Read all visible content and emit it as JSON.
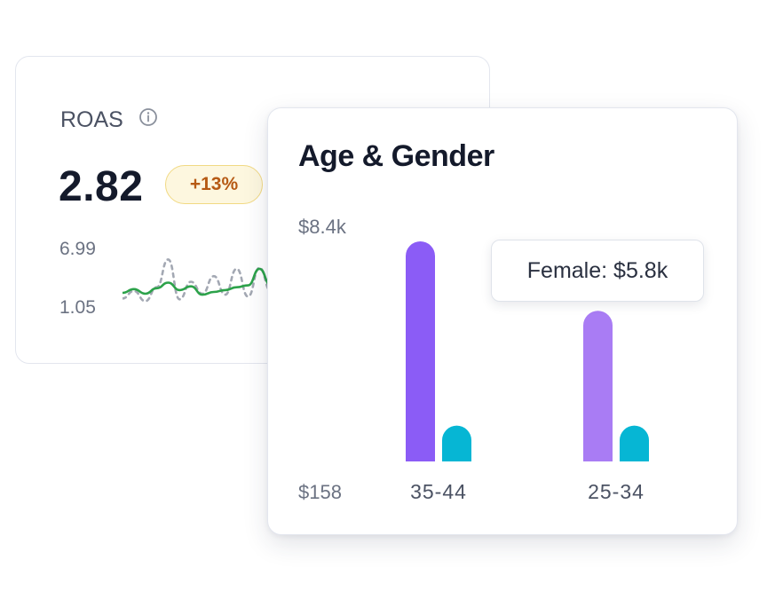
{
  "roas_card": {
    "title": "ROAS",
    "value": "2.82",
    "change_badge": "+13%",
    "spark_max": "6.99",
    "spark_min": "1.05",
    "colors": {
      "current": "#2ca24a",
      "previous": "#a3a8b3",
      "badge_text": "#b65a14",
      "badge_bg": "#fdf7df"
    }
  },
  "age_card": {
    "title": "Age & Gender",
    "tooltip": "Female: $5.8k"
  },
  "chart_data": [
    {
      "type": "line",
      "title": "",
      "ylim": [
        1.05,
        6.99
      ],
      "y_tick_labels": [
        "6.99",
        "1.05"
      ],
      "grid": false,
      "series": [
        {
          "style": "solid",
          "color": "#2ca24a",
          "values": [
            2.2,
            2.6,
            2.1,
            2.7,
            3.3,
            2.5,
            2.9,
            2.0,
            2.3,
            2.5,
            2.8,
            3.0,
            4.8,
            3.0,
            3.8
          ]
        },
        {
          "style": "dashed",
          "color": "#a3a8b3",
          "values": [
            1.6,
            2.4,
            1.3,
            2.8,
            5.8,
            1.5,
            3.4,
            2.1,
            4.0,
            2.0,
            4.8,
            1.8,
            4.9,
            2.4,
            4.2
          ]
        }
      ]
    },
    {
      "type": "bar",
      "title": "Age & Gender",
      "categories": [
        "35-44",
        "25-34"
      ],
      "y_tick_labels": [
        "$8.4k",
        "$158"
      ],
      "ylim": [
        158,
        8400
      ],
      "grid": false,
      "series": [
        {
          "color": "#8b5cf6",
          "values": [
            8400,
            null
          ]
        },
        {
          "color": "#a97cf4",
          "values": [
            null,
            5800
          ]
        },
        {
          "color": "#06b6d4",
          "values": [
            1500,
            1500
          ]
        }
      ]
    }
  ]
}
